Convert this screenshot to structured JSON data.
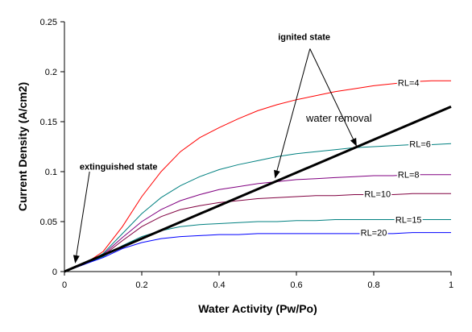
{
  "chart_data": {
    "type": "line",
    "xlabel": "Water Activity (Pw/Po)",
    "ylabel": "Current Density (A/cm2)",
    "xlim": [
      0,
      1
    ],
    "ylim": [
      0,
      0.25
    ],
    "x_ticks": [
      "0",
      "0.2",
      "0.4",
      "0.6",
      "0.8",
      "1"
    ],
    "y_ticks": [
      "0",
      "0.05",
      "0.1",
      "0.15",
      "0.2",
      "0.25"
    ],
    "x_tick_values": [
      0,
      0.2,
      0.4,
      0.6,
      0.8,
      1
    ],
    "y_tick_values": [
      0,
      0.05,
      0.1,
      0.15,
      0.2,
      0.25
    ],
    "grid": false,
    "legend": "none",
    "x": [
      0,
      0.05,
      0.1,
      0.15,
      0.2,
      0.25,
      0.3,
      0.35,
      0.4,
      0.45,
      0.5,
      0.55,
      0.6,
      0.65,
      0.7,
      0.75,
      0.8,
      0.85,
      0.9,
      0.95,
      1.0
    ],
    "series": [
      {
        "name": "RL=4",
        "color": "#ff0000",
        "label_x": 0.89,
        "label_y": 0.189,
        "values": [
          0,
          0.007,
          0.02,
          0.045,
          0.075,
          0.1,
          0.12,
          0.134,
          0.144,
          0.153,
          0.161,
          0.167,
          0.172,
          0.176,
          0.18,
          0.183,
          0.186,
          0.188,
          0.19,
          0.191,
          0.191
        ]
      },
      {
        "name": "RL=6",
        "color": "#008080",
        "label_x": 0.92,
        "label_y": 0.128,
        "values": [
          0,
          0.007,
          0.018,
          0.038,
          0.058,
          0.074,
          0.086,
          0.095,
          0.102,
          0.107,
          0.111,
          0.115,
          0.118,
          0.12,
          0.122,
          0.124,
          0.125,
          0.126,
          0.127,
          0.127,
          0.128
        ]
      },
      {
        "name": "RL=8",
        "color": "#800080",
        "label_x": 0.89,
        "label_y": 0.097,
        "values": [
          0,
          0.007,
          0.017,
          0.034,
          0.05,
          0.062,
          0.071,
          0.077,
          0.082,
          0.085,
          0.088,
          0.09,
          0.092,
          0.093,
          0.094,
          0.095,
          0.096,
          0.096,
          0.097,
          0.097,
          0.097
        ]
      },
      {
        "name": "RL=10",
        "color": "#800040",
        "label_x": 0.81,
        "label_y": 0.078,
        "values": [
          0,
          0.007,
          0.016,
          0.031,
          0.045,
          0.055,
          0.062,
          0.066,
          0.069,
          0.071,
          0.073,
          0.074,
          0.075,
          0.076,
          0.076,
          0.077,
          0.077,
          0.077,
          0.078,
          0.078,
          0.078
        ]
      },
      {
        "name": "RL=15",
        "color": "#008080",
        "label_x": 0.89,
        "label_y": 0.052,
        "values": [
          0,
          0.007,
          0.015,
          0.026,
          0.035,
          0.041,
          0.045,
          0.047,
          0.048,
          0.049,
          0.05,
          0.05,
          0.051,
          0.051,
          0.052,
          0.052,
          0.052,
          0.052,
          0.052,
          0.052,
          0.052
        ]
      },
      {
        "name": "RL=20",
        "color": "#0000ff",
        "label_x": 0.8,
        "label_y": 0.039,
        "values": [
          0,
          0.007,
          0.014,
          0.023,
          0.029,
          0.033,
          0.035,
          0.036,
          0.037,
          0.037,
          0.038,
          0.038,
          0.038,
          0.038,
          0.038,
          0.038,
          0.038,
          0.038,
          0.039,
          0.039,
          0.039
        ]
      }
    ],
    "reference_line": {
      "name": "water removal",
      "color": "#000000",
      "x": [
        0,
        1
      ],
      "y": [
        0,
        0.165
      ]
    },
    "annotations": {
      "ignited": {
        "text": "ignited state",
        "text_x": 0.62,
        "text_y": 0.232,
        "arrow_from": [
          0.635,
          0.223
        ],
        "arrow_targets": [
          [
            0.545,
            0.094
          ],
          [
            0.755,
            0.126
          ]
        ]
      },
      "extinguished": {
        "text": "extinguished state",
        "text_x": 0.14,
        "text_y": 0.102,
        "arrow_from": [
          0.065,
          0.1
        ],
        "arrow_targets": [
          [
            0.028,
            0.009
          ]
        ]
      },
      "water_removal": {
        "text": "water removal",
        "text_x": 0.71,
        "text_y": 0.15
      }
    }
  }
}
